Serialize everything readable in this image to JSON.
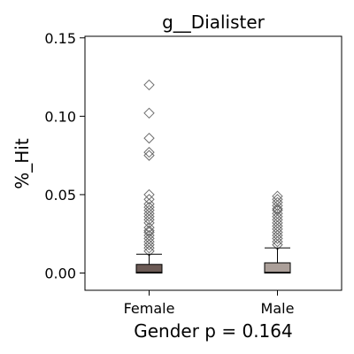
{
  "chart_data": {
    "type": "box",
    "title": "g__Dialister",
    "xlabel": "Gender p = 0.164",
    "ylabel": "%_Hit",
    "ylim": [
      -0.011,
      0.151
    ],
    "yticks": [
      0.0,
      0.05,
      0.1,
      0.15
    ],
    "ytick_labels": [
      "0.00",
      "0.05",
      "0.10",
      "0.15"
    ],
    "categories": [
      "Female",
      "Male"
    ],
    "colors": [
      "#6b5a55",
      "#ab9f99"
    ],
    "boxes": [
      {
        "label": "Female",
        "q1": 0.0,
        "median": 0.0005,
        "q3": 0.0055,
        "whisker_low": 0.0,
        "whisker_high": 0.012,
        "outliers": [
          0.12,
          0.102,
          0.086,
          0.077,
          0.075,
          0.05,
          0.047,
          0.044,
          0.042,
          0.04,
          0.038,
          0.036,
          0.034,
          0.032,
          0.029,
          0.027,
          0.026,
          0.024,
          0.022,
          0.02,
          0.018,
          0.016,
          0.014
        ]
      },
      {
        "label": "Male",
        "q1": 0.0,
        "median": 0.0005,
        "q3": 0.0065,
        "whisker_low": 0.0,
        "whisker_high": 0.016,
        "outliers": [
          0.049,
          0.047,
          0.045,
          0.043,
          0.041,
          0.04,
          0.038,
          0.036,
          0.034,
          0.032,
          0.03,
          0.028,
          0.026,
          0.024,
          0.022,
          0.02,
          0.018
        ]
      }
    ],
    "grid": false,
    "legend": "none"
  }
}
